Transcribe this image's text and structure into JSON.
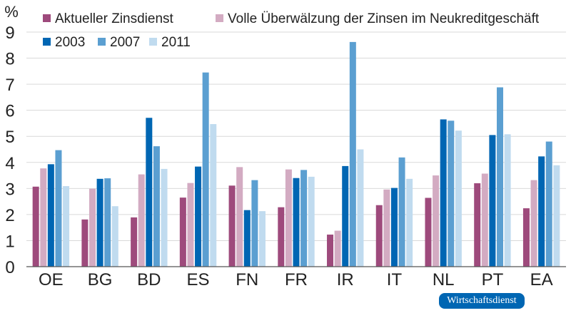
{
  "chart_data": {
    "type": "bar",
    "ylabel": "%",
    "ylim": [
      0,
      9
    ],
    "yticks": [
      0,
      1,
      2,
      3,
      4,
      5,
      6,
      7,
      8,
      9
    ],
    "grid": true,
    "legend_placement": "top",
    "categories": [
      "OE",
      "BG",
      "BD",
      "ES",
      "FN",
      "FR",
      "IR",
      "IT",
      "NL",
      "PT",
      "EA"
    ],
    "series": [
      {
        "name": "Aktueller Zinsdienst",
        "color": "#9e4a7c",
        "values": [
          3.07,
          1.81,
          1.89,
          2.65,
          3.11,
          2.28,
          1.23,
          2.36,
          2.64,
          3.2,
          2.24
        ]
      },
      {
        "name": "Volle Überwälzung der Zinsen im Neukreditgeschäft",
        "color": "#d3abc2",
        "values": [
          3.77,
          2.99,
          3.54,
          3.21,
          3.82,
          3.73,
          1.38,
          2.96,
          3.5,
          3.57,
          3.32
        ]
      },
      {
        "name": "2003",
        "color": "#0066b3",
        "values": [
          3.93,
          3.37,
          5.71,
          3.84,
          2.17,
          3.4,
          3.86,
          3.02,
          5.65,
          5.05,
          4.23
        ]
      },
      {
        "name": "2007",
        "color": "#5b9fd1",
        "values": [
          4.47,
          3.39,
          4.62,
          7.45,
          3.32,
          3.71,
          8.62,
          4.19,
          5.6,
          6.88,
          4.8
        ]
      },
      {
        "name": "2011",
        "color": "#c0dbef",
        "values": [
          3.09,
          2.32,
          3.75,
          5.47,
          2.13,
          3.45,
          4.5,
          3.37,
          5.22,
          5.08,
          3.89
        ]
      }
    ]
  },
  "logo": "Wirtschaftsdienst"
}
